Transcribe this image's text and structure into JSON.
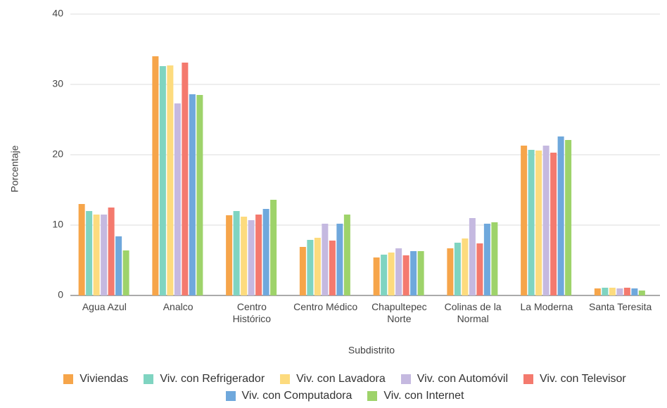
{
  "chart_data": {
    "type": "bar",
    "xlabel": "Subdistrito",
    "ylabel": "Porcentaje",
    "categories": [
      "Agua Azul",
      "Analco",
      "Centro Histórico",
      "Centro Médico",
      "Chapultepec Norte",
      "Colinas de la Normal",
      "La Moderna",
      "Santa Teresita"
    ],
    "series": [
      {
        "name": "Viviendas",
        "color": "#f6a54a",
        "values": [
          13.0,
          34.0,
          11.4,
          6.9,
          5.4,
          6.7,
          21.3,
          1.0
        ]
      },
      {
        "name": "Viv. con Refrigerador",
        "color": "#7fd4c1",
        "values": [
          12.0,
          32.6,
          12.0,
          7.9,
          5.8,
          7.5,
          20.7,
          1.1
        ]
      },
      {
        "name": "Viv. con Lavadora",
        "color": "#fddb7e",
        "values": [
          11.5,
          32.7,
          11.2,
          8.2,
          6.1,
          8.1,
          20.6,
          1.1
        ]
      },
      {
        "name": "Viv. con Automóvil",
        "color": "#c5b9e0",
        "values": [
          11.5,
          27.3,
          10.7,
          10.2,
          6.7,
          11.0,
          21.3,
          1.0
        ]
      },
      {
        "name": "Viv. con Televisor",
        "color": "#f47a6e",
        "values": [
          12.5,
          33.1,
          11.5,
          7.8,
          5.7,
          7.4,
          20.3,
          1.1
        ]
      },
      {
        "name": "Viv. con Computadora",
        "color": "#6fa8dc",
        "values": [
          8.4,
          28.6,
          12.3,
          10.2,
          6.3,
          10.2,
          22.6,
          1.0
        ]
      },
      {
        "name": "Viv. con Internet",
        "color": "#9ed36a",
        "values": [
          6.4,
          28.5,
          13.6,
          11.5,
          6.3,
          10.4,
          22.1,
          0.7
        ]
      }
    ],
    "ylim": [
      0,
      40
    ],
    "yticks": [
      0,
      10,
      20,
      30,
      40
    ],
    "grid": true
  }
}
